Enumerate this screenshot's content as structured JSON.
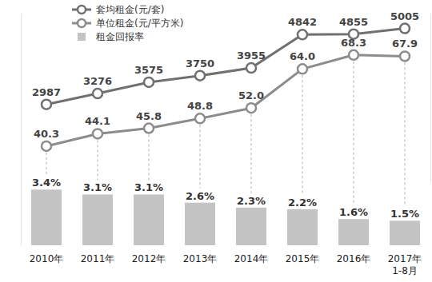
{
  "chart_data": [
    {
      "type": "line",
      "ylim": [
        900,
        5400
      ],
      "y2lim": [
        29,
        81
      ],
      "tick_labels": false,
      "data_labels": true,
      "legend": "top-left",
      "series": [
        {
          "name": "套均租金(元/套)",
          "color": "#707070",
          "marker": "circle",
          "line_style": "solid",
          "values": [
            2987,
            3276,
            3575,
            3750,
            3955,
            4842,
            4855,
            5005
          ]
        },
        {
          "name": "单位租金(元/平方米)",
          "color": "#8c8c8c",
          "marker": "circle",
          "line_style": "solid",
          "axis": "y2",
          "values": [
            40.3,
            44.1,
            45.8,
            48.8,
            52.0,
            64.0,
            68.3,
            67.9
          ],
          "value_labels": [
            "40.3",
            "44.1",
            "45.8",
            "48.8",
            "52.0",
            "64.0",
            "68.3",
            "67.9"
          ]
        }
      ]
    },
    {
      "type": "bar",
      "categories": [
        "2010年",
        "2011年",
        "2012年",
        "2013年",
        "2014年",
        "2015年",
        "2016年",
        "2017年\n1-8月"
      ],
      "ylim": [
        0,
        4
      ],
      "tick_labels": "x",
      "data_labels": true,
      "legend": "top-left",
      "series": [
        {
          "name": "租金回报率",
          "color": "#c4c4c4",
          "values": [
            3.4,
            3.1,
            3.1,
            2.6,
            2.3,
            2.2,
            1.6,
            1.5
          ],
          "value_labels": [
            "3.4%",
            "3.1%",
            "3.1%",
            "2.6%",
            "2.3%",
            "2.2%",
            "1.6%",
            "1.5%"
          ]
        }
      ]
    }
  ]
}
